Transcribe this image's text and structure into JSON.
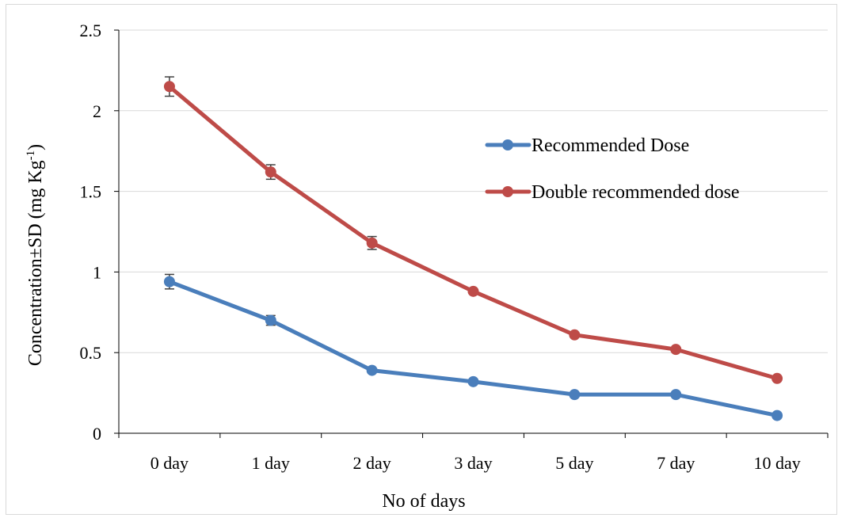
{
  "chart_data": {
    "type": "line",
    "title": "",
    "xlabel": "No of days",
    "ylabel_main": "Concentration±SD (mg Kg",
    "ylabel_sup": "-1",
    "ylabel_close": ")",
    "categories": [
      "0 day",
      "1 day",
      "2 day",
      "3 day",
      "5 day",
      "7 day",
      "10 day"
    ],
    "ylim": [
      0,
      2.5
    ],
    "yticks": [
      0,
      0.5,
      1,
      1.5,
      2,
      2.5
    ],
    "ytick_labels": [
      "0",
      "0.5",
      "1",
      "1.5",
      "2",
      "2.5"
    ],
    "grid": "horizontal",
    "legend_position": "right",
    "series": [
      {
        "name": "Recommended Dose",
        "color": "#4a7ebb",
        "values": [
          0.94,
          0.7,
          0.39,
          0.32,
          0.24,
          0.24,
          0.11
        ],
        "errors": [
          0.045,
          0.03,
          0.0,
          0.0,
          0.0,
          0.0,
          0.0
        ]
      },
      {
        "name": "Double recommended dose",
        "color": "#be4b48",
        "values": [
          2.15,
          1.62,
          1.18,
          0.88,
          0.61,
          0.52,
          0.34
        ],
        "errors": [
          0.06,
          0.045,
          0.04,
          0.0,
          0.0,
          0.0,
          0.0
        ]
      }
    ]
  }
}
